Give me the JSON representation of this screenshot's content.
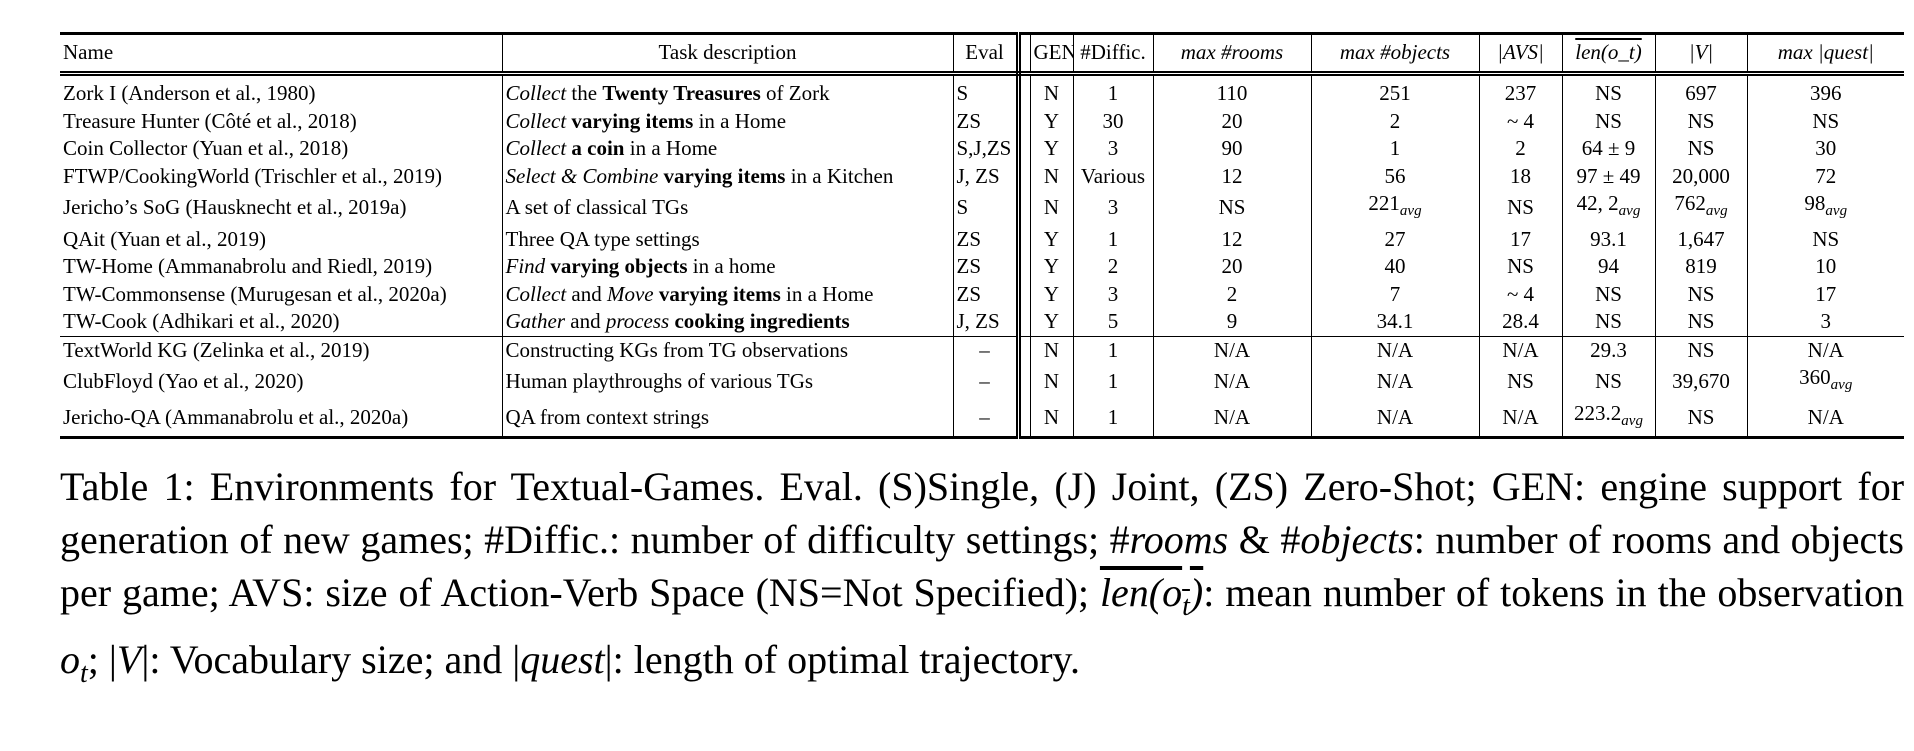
{
  "table": {
    "headers": {
      "name": "Name",
      "task": "Task description",
      "eval": "Eval",
      "gen": "GEN",
      "diffic": "#Diffic.",
      "rooms": "max #rooms",
      "objects": "max #objects",
      "avs": "|AVS|",
      "len": "len(o_t)",
      "vocab": "|V|",
      "quest": "max |quest|"
    },
    "rows": [
      {
        "name": "Zork I (Anderson et al., 1980)",
        "task": [
          {
            "t": "Collect",
            "s": "i"
          },
          {
            "t": " the "
          },
          {
            "t": "Twenty Treasures",
            "s": "b"
          },
          {
            "t": " of Zork"
          }
        ],
        "eval": "S",
        "gen": "N",
        "diffic": "1",
        "rooms": "110",
        "objects": "251",
        "avs": "237",
        "len": "NS",
        "vocab": "697",
        "quest": "396"
      },
      {
        "name": "Treasure Hunter (Côté et al., 2018)",
        "task": [
          {
            "t": "Collect",
            "s": "i"
          },
          {
            "t": " "
          },
          {
            "t": "varying items",
            "s": "b"
          },
          {
            "t": " in a Home"
          }
        ],
        "eval": "ZS",
        "gen": "Y",
        "diffic": "30",
        "rooms": "20",
        "objects": "2",
        "avs": "~ 4",
        "len": "NS",
        "vocab": "NS",
        "quest": "NS"
      },
      {
        "name": "Coin Collector (Yuan et al., 2018)",
        "task": [
          {
            "t": "Collect",
            "s": "i"
          },
          {
            "t": " "
          },
          {
            "t": "a coin",
            "s": "b"
          },
          {
            "t": " in a Home"
          }
        ],
        "eval": "S,J,ZS",
        "gen": "Y",
        "diffic": "3",
        "rooms": "90",
        "objects": "1",
        "avs": "2",
        "len": "64 ± 9",
        "vocab": "NS",
        "quest": "30"
      },
      {
        "name": "FTWP/CookingWorld (Trischler et al., 2019)",
        "task": [
          {
            "t": "Select & Combine",
            "s": "i"
          },
          {
            "t": " "
          },
          {
            "t": "varying items",
            "s": "b"
          },
          {
            "t": " in a Kitchen"
          }
        ],
        "eval": "J, ZS",
        "gen": "N",
        "diffic": "Various",
        "rooms": "12",
        "objects": "56",
        "avs": "18",
        "len": "97 ± 49",
        "vocab": "20,000",
        "quest": "72"
      },
      {
        "name": "Jericho’s SoG (Hausknecht et al., 2019a)",
        "task": [
          {
            "t": "A set of classical TGs"
          }
        ],
        "eval": "S",
        "gen": "N",
        "diffic": "3",
        "rooms": "NS",
        "objects": "221avg",
        "avs": "NS",
        "len": "42, 2avg",
        "vocab": "762avg",
        "quest": "98avg"
      },
      {
        "name": "QAit (Yuan et al., 2019)",
        "task": [
          {
            "t": "Three QA type settings"
          }
        ],
        "eval": "ZS",
        "gen": "Y",
        "diffic": "1",
        "rooms": "12",
        "objects": "27",
        "avs": "17",
        "len": "93.1",
        "vocab": "1,647",
        "quest": "NS"
      },
      {
        "name": "TW-Home (Ammanabrolu and Riedl, 2019)",
        "task": [
          {
            "t": "Find",
            "s": "i"
          },
          {
            "t": " "
          },
          {
            "t": "varying objects",
            "s": "b"
          },
          {
            "t": " in a home"
          }
        ],
        "eval": "ZS",
        "gen": "Y",
        "diffic": "2",
        "rooms": "20",
        "objects": "40",
        "avs": "NS",
        "len": "94",
        "vocab": "819",
        "quest": "10"
      },
      {
        "name": "TW-Commonsense (Murugesan et al., 2020a)",
        "task": [
          {
            "t": "Collect",
            "s": "i"
          },
          {
            "t": " and "
          },
          {
            "t": "Move",
            "s": "i"
          },
          {
            "t": " "
          },
          {
            "t": "varying items",
            "s": "b"
          },
          {
            "t": " in a Home"
          }
        ],
        "eval": "ZS",
        "gen": "Y",
        "diffic": "3",
        "rooms": "2",
        "objects": "7",
        "avs": "~ 4",
        "len": "NS",
        "vocab": "NS",
        "quest": "17"
      },
      {
        "name": "TW-Cook (Adhikari et al., 2020)",
        "task": [
          {
            "t": "Gather",
            "s": "i"
          },
          {
            "t": " and "
          },
          {
            "t": "process",
            "s": "i"
          },
          {
            "t": " "
          },
          {
            "t": "cooking ingredients",
            "s": "b"
          }
        ],
        "eval": "J, ZS",
        "gen": "Y",
        "diffic": "5",
        "rooms": "9",
        "objects": "34.1",
        "avs": "28.4",
        "len": "NS",
        "vocab": "NS",
        "quest": "3"
      },
      {
        "group_start": true,
        "name": "TextWorld KG (Zelinka et al., 2019)",
        "task": [
          {
            "t": "Constructing KGs from TG observations"
          }
        ],
        "eval": "–",
        "gen": "N",
        "diffic": "1",
        "rooms": "N/A",
        "objects": "N/A",
        "avs": "N/A",
        "len": "29.3",
        "vocab": "NS",
        "quest": "N/A"
      },
      {
        "name": "ClubFloyd (Yao et al., 2020)",
        "task": [
          {
            "t": "Human playthroughs of various TGs"
          }
        ],
        "eval": "–",
        "gen": "N",
        "diffic": "1",
        "rooms": "N/A",
        "objects": "N/A",
        "avs": "NS",
        "len": "NS",
        "vocab": "39,670",
        "quest": "360avg"
      },
      {
        "name": "Jericho-QA (Ammanabrolu et al., 2020a)",
        "task": [
          {
            "t": "QA from context strings"
          }
        ],
        "eval": "–",
        "gen": "N",
        "diffic": "1",
        "rooms": "N/A",
        "objects": "N/A",
        "avs": "N/A",
        "len": "223.2avg",
        "vocab": "NS",
        "quest": "N/A"
      }
    ]
  },
  "caption": {
    "label": "Table 1:",
    "parts": [
      {
        "t": " Environments for Textual-Games. Eval. (S)Single, (J) Joint, (ZS) Zero-Shot; GEN: engine support for generation of new games; #Diffic.: number of difficulty settings; #"
      },
      {
        "t": "rooms",
        "m": true
      },
      {
        "t": " & #"
      },
      {
        "t": "objects",
        "m": true
      },
      {
        "t": ": number of rooms and objects per game; AVS: size of Action-Verb Space (NS=Not Specified); "
      },
      {
        "t": "len(o",
        "m": true,
        "ov": true
      },
      {
        "t": "t",
        "m": true,
        "ov": true,
        "sub": true
      },
      {
        "t": ")",
        "m": true,
        "ov": true
      },
      {
        "t": ": mean number of tokens in the observation "
      },
      {
        "t": "o",
        "m": true
      },
      {
        "t": "t",
        "m": true,
        "sub": true
      },
      {
        "t": "; |"
      },
      {
        "t": "V",
        "m": true
      },
      {
        "t": "|: Vocabulary size; and |"
      },
      {
        "t": "quest",
        "m": true
      },
      {
        "t": "|: length of optimal trajectory."
      }
    ]
  }
}
